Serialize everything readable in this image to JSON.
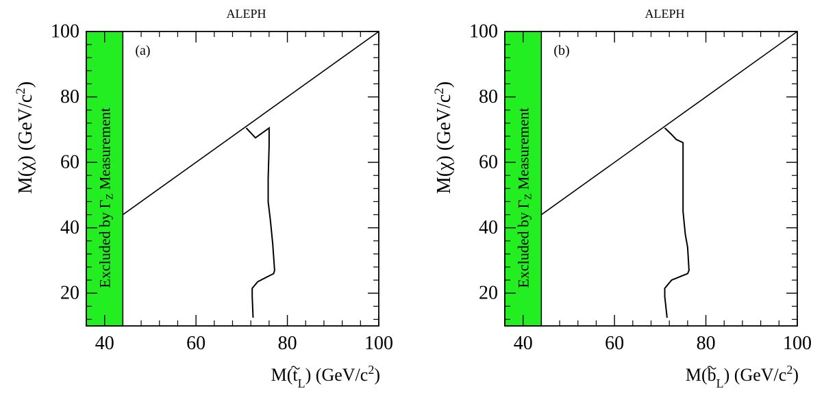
{
  "chart_data": [
    {
      "type": "line",
      "title": "ALEPH",
      "panel_label": "(a)",
      "xlabel": {
        "base": "M(",
        "sym": "t",
        "sub": "L",
        "tail": ") (GeV/c",
        "sup": "2",
        "close": ")"
      },
      "ylabel": {
        "base": "M(",
        "sym": "χ",
        "tail": ") (GeV/c",
        "sup": "2",
        "close": ")"
      },
      "xlim": [
        36,
        100
      ],
      "ylim": [
        10,
        100
      ],
      "xticks": [
        40,
        60,
        80,
        100
      ],
      "yticks": [
        20,
        40,
        60,
        80,
        100
      ],
      "excluded_region": {
        "x_range": [
          36,
          44
        ],
        "color": "#22ee22",
        "label": {
          "base": "Excluded by ",
          "sym": "Γ",
          "sub": "Z",
          "tail": " Measurement"
        }
      },
      "kinematic_line": {
        "x": [
          44,
          100
        ],
        "y": [
          44,
          100
        ]
      },
      "series": [
        {
          "x": [
            71,
            73,
            76,
            76,
            75.8,
            75.8,
            76.3,
            76.8,
            77.2,
            77,
            73.5,
            72.3,
            72.3,
            72.5
          ],
          "y": [
            70.5,
            67.5,
            70.5,
            65,
            55,
            48,
            42,
            35,
            27,
            26,
            23.5,
            21.5,
            19,
            12.5
          ]
        }
      ]
    },
    {
      "type": "line",
      "title": "ALEPH",
      "panel_label": "(b)",
      "xlabel": {
        "base": "M(",
        "sym": "b",
        "sub": "L",
        "tail": ") (GeV/c",
        "sup": "2",
        "close": ")"
      },
      "ylabel": {
        "base": "M(",
        "sym": "χ",
        "tail": ") (GeV/c",
        "sup": "2",
        "close": ")"
      },
      "xlim": [
        36,
        100
      ],
      "ylim": [
        10,
        100
      ],
      "xticks": [
        40,
        60,
        80,
        100
      ],
      "yticks": [
        20,
        40,
        60,
        80,
        100
      ],
      "excluded_region": {
        "x_range": [
          36,
          44
        ],
        "color": "#22ee22",
        "label": {
          "base": "Excluded by ",
          "sym": "Γ",
          "sub": "Z",
          "tail": " Measurement"
        }
      },
      "kinematic_line": {
        "x": [
          44,
          100
        ],
        "y": [
          44,
          100
        ]
      },
      "series": [
        {
          "x": [
            71,
            72.5,
            73.5,
            75,
            75,
            75,
            75.5,
            76,
            76.3,
            76,
            72.5,
            71,
            71,
            71.5
          ],
          "y": [
            70.5,
            68.5,
            67,
            66,
            55,
            45,
            38,
            34,
            27,
            26,
            24,
            21.5,
            19,
            12.5
          ]
        }
      ]
    }
  ]
}
